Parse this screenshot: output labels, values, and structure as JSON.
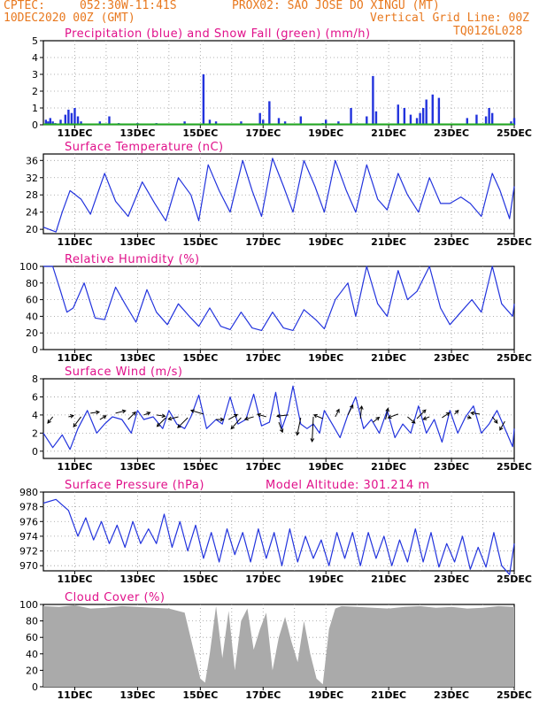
{
  "header": {
    "agency": "CPTEC:",
    "coords": "052:30W-11:41S",
    "station": "PROX02: SAO JOSE DO XINGU (MT)",
    "date": "10DEC2020 00Z (GMT)",
    "grid_note": "Vertical Grid Line: 00Z",
    "model_code": "TQ0126L028"
  },
  "colors": {
    "series": "#2233dd",
    "snow": "#22aa22",
    "title": "#e0108a",
    "header": "#e8781e",
    "cloud": "#aaaaaa",
    "wind_arrow": "#000000"
  },
  "x_tick_labels": [
    "11DEC",
    "13DEC",
    "15DEC",
    "17DEC",
    "19DEC",
    "21DEC",
    "23DEC",
    "25DEC"
  ],
  "x_tick_days": [
    1,
    3,
    5,
    7,
    9,
    11,
    13,
    15
  ],
  "chart_data": [
    {
      "type": "bar",
      "title": "Precipitation (blue) and Snow Fall (green) (mm/h)",
      "x_unit": "days since 10DEC2020 00Z",
      "ylim": [
        0,
        5
      ],
      "yticks": [
        0,
        1,
        2,
        3,
        4,
        5
      ],
      "grid": true,
      "series": [
        {
          "name": "Precipitation",
          "x": [
            0.08,
            0.15,
            0.22,
            0.3,
            0.38,
            0.55,
            0.7,
            0.8,
            0.9,
            1.0,
            1.1,
            1.2,
            1.8,
            2.1,
            2.4,
            3.0,
            3.6,
            4.5,
            5.1,
            5.3,
            5.5,
            6.3,
            6.9,
            7.0,
            7.2,
            7.5,
            7.7,
            8.2,
            8.9,
            9.0,
            9.4,
            9.8,
            10.3,
            10.5,
            10.6,
            11.3,
            11.5,
            11.7,
            11.9,
            12.0,
            12.1,
            12.2,
            12.4,
            12.6,
            13.5,
            13.8,
            14.1,
            14.2,
            14.3,
            14.9,
            15.0
          ],
          "values": [
            0.3,
            0.2,
            0.4,
            0.2,
            0.1,
            0.3,
            0.6,
            0.9,
            0.7,
            1.0,
            0.5,
            0.2,
            0.2,
            0.5,
            0.1,
            0.1,
            0.1,
            0.2,
            3.0,
            0.3,
            0.2,
            0.2,
            0.7,
            0.3,
            1.4,
            0.4,
            0.2,
            0.5,
            0.1,
            0.3,
            0.2,
            1.0,
            0.5,
            2.9,
            0.8,
            1.2,
            1.0,
            0.6,
            0.4,
            0.7,
            1.0,
            1.5,
            1.8,
            1.6,
            0.4,
            0.6,
            0.5,
            1.0,
            0.7,
            0.2,
            0.4
          ]
        },
        {
          "name": "Snow Fall",
          "x": [
            0,
            15
          ],
          "values": [
            0,
            0
          ]
        }
      ]
    },
    {
      "type": "line",
      "title": "Surface Temperature (nC)",
      "x_unit": "days since 10DEC2020 00Z",
      "ylim": [
        19,
        37.5
      ],
      "yticks": [
        20,
        24,
        28,
        32,
        36
      ],
      "grid": true,
      "series": [
        {
          "name": "Surface Temperature",
          "x": [
            0,
            0.4,
            0.6,
            0.85,
            1.2,
            1.5,
            1.95,
            2.3,
            2.7,
            3.15,
            3.55,
            3.9,
            4.3,
            4.7,
            4.95,
            5.25,
            5.6,
            5.95,
            6.35,
            6.65,
            6.95,
            7.3,
            7.65,
            7.95,
            8.3,
            8.65,
            8.95,
            9.3,
            9.65,
            9.95,
            10.3,
            10.65,
            10.95,
            11.3,
            11.6,
            11.95,
            12.3,
            12.65,
            12.95,
            13.3,
            13.6,
            13.95,
            14.3,
            14.55,
            14.85,
            15.0
          ],
          "y": [
            20.5,
            19.4,
            24,
            29,
            27,
            23.5,
            33,
            26.5,
            23,
            31,
            26,
            22,
            32,
            28,
            22,
            35,
            29,
            24,
            36,
            29,
            23,
            36.5,
            30,
            24,
            36,
            30,
            24,
            36,
            29,
            24,
            35,
            27,
            24.5,
            33,
            28,
            24,
            32,
            26,
            26,
            27.5,
            26,
            23,
            33,
            29,
            22.5,
            30
          ]
        }
      ]
    },
    {
      "type": "line",
      "title": "Relative Humidity (%)",
      "x_unit": "days since 10DEC2020 00Z",
      "ylim": [
        0,
        100
      ],
      "yticks": [
        0,
        20,
        40,
        60,
        80,
        100
      ],
      "grid": true,
      "series": [
        {
          "name": "Relative Humidity",
          "x": [
            0,
            0.3,
            0.55,
            0.75,
            0.95,
            1.3,
            1.65,
            1.95,
            2.3,
            2.6,
            2.95,
            3.3,
            3.6,
            3.95,
            4.3,
            4.65,
            4.95,
            5.3,
            5.65,
            5.95,
            6.3,
            6.65,
            6.95,
            7.3,
            7.65,
            7.95,
            8.3,
            8.7,
            8.95,
            9.3,
            9.7,
            9.95,
            10.3,
            10.65,
            10.95,
            11.3,
            11.6,
            11.9,
            12.3,
            12.65,
            12.95,
            13.3,
            13.65,
            13.95,
            14.3,
            14.6,
            14.95,
            15.0
          ],
          "y": [
            100,
            100,
            70,
            45,
            50,
            80,
            38,
            36,
            75,
            55,
            33,
            72,
            45,
            30,
            55,
            40,
            28,
            50,
            28,
            24,
            45,
            26,
            23,
            45,
            26,
            23,
            48,
            35,
            25,
            60,
            80,
            40,
            100,
            55,
            40,
            95,
            60,
            70,
            100,
            50,
            30,
            45,
            60,
            45,
            100,
            55,
            40,
            55
          ]
        }
      ]
    },
    {
      "type": "line",
      "title": "Surface Wind (m/s)",
      "x_unit": "days since 10DEC2020 00Z",
      "ylim": [
        -0.8,
        8
      ],
      "yticks": [
        0,
        2,
        4,
        6,
        8
      ],
      "grid": true,
      "series": [
        {
          "name": "Surface Wind",
          "x": [
            0,
            0.3,
            0.6,
            0.85,
            1.1,
            1.4,
            1.7,
            1.95,
            2.2,
            2.5,
            2.8,
            3.0,
            3.2,
            3.5,
            3.8,
            4.0,
            4.25,
            4.5,
            4.7,
            4.95,
            5.2,
            5.5,
            5.7,
            5.95,
            6.2,
            6.45,
            6.7,
            6.95,
            7.2,
            7.4,
            7.6,
            7.8,
            7.95,
            8.2,
            8.4,
            8.6,
            8.8,
            8.95,
            9.2,
            9.45,
            9.7,
            9.95,
            10.2,
            10.45,
            10.7,
            10.95,
            11.2,
            11.45,
            11.7,
            11.95,
            12.2,
            12.45,
            12.7,
            12.95,
            13.2,
            13.45,
            13.7,
            13.95,
            14.2,
            14.45,
            14.7,
            14.95,
            15.0
          ],
          "y": [
            2.0,
            0.4,
            1.8,
            0.2,
            2.5,
            4.5,
            2.0,
            3.0,
            3.8,
            3.5,
            2.0,
            4.5,
            3.5,
            3.8,
            2.5,
            4.5,
            3.0,
            2.5,
            3.8,
            6.2,
            2.5,
            3.5,
            3.0,
            6.0,
            3.0,
            3.5,
            6.3,
            2.8,
            3.2,
            6.5,
            2.5,
            4.5,
            7.2,
            3.0,
            2.5,
            3.0,
            2.0,
            4.5,
            3.0,
            1.5,
            4.0,
            6.0,
            2.5,
            3.5,
            2.0,
            4.5,
            1.5,
            3.0,
            2.0,
            5.0,
            2.0,
            3.5,
            1.0,
            4.5,
            2.0,
            3.8,
            5.0,
            2.0,
            3.0,
            4.5,
            2.5,
            0.5,
            2.5
          ]
        }
      ],
      "wind_vectors": {
        "x": [
          0.3,
          0.8,
          1.2,
          1.5,
          1.8,
          2.3,
          2.7,
          3.2,
          3.6,
          3.9,
          4.3,
          4.6,
          5.1,
          5.5,
          5.9,
          6.3,
          6.7,
          7.1,
          7.5,
          7.8,
          8.2,
          8.6,
          8.9,
          9.3,
          9.7,
          10.1,
          10.5,
          10.9,
          11.3,
          11.6,
          11.9,
          12.3,
          12.7,
          13.1,
          13.5,
          13.9,
          14.3,
          14.7
        ],
        "y": [
          3.8,
          3.8,
          3.8,
          4.2,
          3.5,
          4.2,
          3.5,
          4.0,
          4.0,
          3.7,
          3.8,
          3.7,
          4.1,
          3.5,
          3.5,
          3.7,
          3.8,
          3.8,
          3.2,
          4.0,
          3.7,
          3.8,
          3.6,
          3.8,
          4.0,
          3.6,
          3.2,
          3.5,
          4.1,
          3.8,
          3.6,
          3.8,
          3.7,
          4.1,
          3.8,
          4.1,
          3.8,
          3.3
        ],
        "u": [
          -0.4,
          0.4,
          -0.6,
          0.7,
          0.5,
          0.8,
          0.6,
          0.5,
          0.7,
          -0.7,
          -0.8,
          -0.8,
          -1.0,
          0.6,
          0.7,
          -0.8,
          -0.7,
          -0.7,
          0.3,
          -0.9,
          -0.3,
          -0.1,
          -0.7,
          0.3,
          0.4,
          0.1,
          0.5,
          0.2,
          -0.8,
          0.6,
          0.7,
          -0.5,
          0.6,
          0.3,
          0.3,
          -0.7,
          0.4,
          -0.4
        ],
        "v": [
          -0.5,
          0.1,
          -0.8,
          0.1,
          0.3,
          0.2,
          0.6,
          0.2,
          -0.1,
          -0.7,
          -0.2,
          -0.8,
          0.3,
          0.0,
          0.4,
          -0.9,
          -0.2,
          0.2,
          -0.8,
          -0.1,
          -1.4,
          -2.0,
          0.3,
          0.6,
          0.8,
          1.0,
          0.4,
          0.9,
          -0.3,
          -0.5,
          0.7,
          -0.2,
          0.4,
          0.3,
          -0.1,
          0.1,
          -0.5,
          -0.7
        ]
      }
    },
    {
      "type": "line",
      "title": "Surface Pressure (hPa)",
      "annotation": "Model Altitude: 301.214 m",
      "x_unit": "days since 10DEC2020 00Z",
      "ylim": [
        969.3,
        980
      ],
      "yticks": [
        970,
        972,
        974,
        976,
        978,
        980
      ],
      "grid": true,
      "series": [
        {
          "name": "Surface Pressure",
          "x": [
            0,
            0.4,
            0.8,
            1.1,
            1.35,
            1.6,
            1.85,
            2.1,
            2.35,
            2.6,
            2.85,
            3.1,
            3.35,
            3.6,
            3.85,
            4.1,
            4.35,
            4.6,
            4.85,
            5.1,
            5.35,
            5.6,
            5.85,
            6.1,
            6.35,
            6.6,
            6.85,
            7.1,
            7.35,
            7.6,
            7.85,
            8.1,
            8.35,
            8.6,
            8.85,
            9.1,
            9.35,
            9.6,
            9.85,
            10.1,
            10.35,
            10.6,
            10.85,
            11.1,
            11.35,
            11.6,
            11.85,
            12.1,
            12.35,
            12.6,
            12.85,
            13.1,
            13.35,
            13.6,
            13.85,
            14.1,
            14.35,
            14.6,
            14.85,
            15.0
          ],
          "y": [
            978.5,
            979,
            977.5,
            974,
            976.5,
            973.5,
            976,
            973,
            975.5,
            972.5,
            976,
            973,
            975,
            973,
            977,
            972.5,
            976,
            972,
            975.5,
            971,
            974.5,
            970.5,
            975,
            971.5,
            974.5,
            970.5,
            975,
            971,
            974.5,
            970,
            975,
            970.5,
            974,
            971,
            973.5,
            970,
            974.5,
            971,
            974.5,
            970,
            974.5,
            971,
            974,
            970,
            973.5,
            970.5,
            975,
            970.5,
            974.5,
            969.8,
            973,
            970.5,
            974,
            969.5,
            972.5,
            969.8,
            974.5,
            970,
            968.8,
            973
          ]
        }
      ]
    },
    {
      "type": "bar",
      "title": "Cloud Cover (%)",
      "x_unit": "days since 10DEC2020 00Z",
      "ylim": [
        0,
        100
      ],
      "yticks": [
        0,
        20,
        40,
        60,
        80,
        100
      ],
      "grid": true,
      "series": [
        {
          "name": "Cloud Cover",
          "x": [
            0,
            0.5,
            1.0,
            1.5,
            2.0,
            2.5,
            3.0,
            3.5,
            4.0,
            4.5,
            4.75,
            5.0,
            5.15,
            5.3,
            5.5,
            5.7,
            5.9,
            6.1,
            6.3,
            6.5,
            6.7,
            6.9,
            7.1,
            7.3,
            7.5,
            7.7,
            7.9,
            8.1,
            8.3,
            8.5,
            8.7,
            8.9,
            9.1,
            9.3,
            9.5,
            10.0,
            10.5,
            11.0,
            11.5,
            12.0,
            12.5,
            13.0,
            13.5,
            14.0,
            14.5,
            15.0
          ],
          "values": [
            98,
            97,
            99,
            95,
            96,
            98,
            97,
            96,
            95,
            90,
            50,
            10,
            5,
            40,
            98,
            35,
            92,
            20,
            80,
            95,
            45,
            70,
            90,
            20,
            60,
            85,
            55,
            30,
            80,
            40,
            10,
            3,
            70,
            95,
            98,
            97,
            96,
            95,
            97,
            98,
            96,
            97,
            95,
            96,
            98,
            97
          ]
        }
      ]
    }
  ]
}
